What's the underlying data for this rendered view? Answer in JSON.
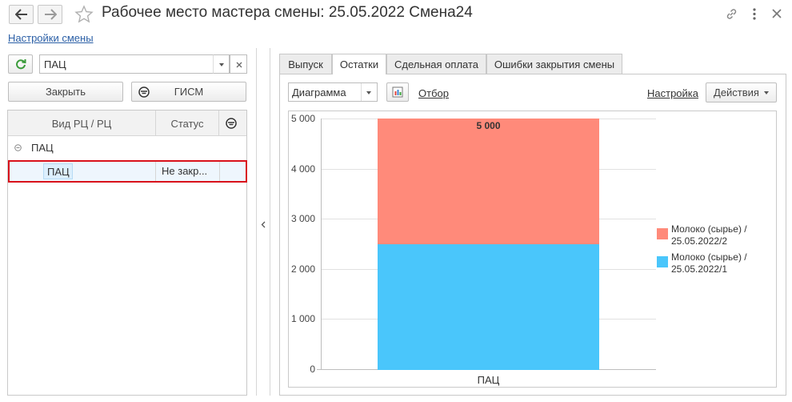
{
  "window": {
    "title": "Рабочее место мастера смены: 25.05.2022 Смена24",
    "settings_link": "Настройки смены",
    "icons": [
      "back-arrow-icon",
      "forward-arrow-icon",
      "star-icon",
      "link-icon",
      "more-vertical-icon",
      "close-icon"
    ]
  },
  "left_panel": {
    "search_value": "ПАЦ",
    "close_button": "Закрыть",
    "gism_button": "ГИСМ",
    "table": {
      "columns": [
        "Вид РЦ / РЦ",
        "Статус"
      ],
      "group": "ПАЦ",
      "rows": [
        {
          "name": "ПАЦ",
          "status": "Не закр..."
        }
      ]
    }
  },
  "tabs": [
    "Выпуск",
    "Остатки",
    "Сдельная оплата",
    "Ошибки закрытия смены"
  ],
  "active_tab": "Остатки",
  "toolbar": {
    "view_select": "Диаграмма",
    "filter_link": "Отбор",
    "settings_link": "Настройка",
    "actions_button": "Действия"
  },
  "colors": {
    "series_2": "#ff8a7a",
    "series_1": "#4ac6fb",
    "highlight": "#d9121b"
  },
  "chart_data": {
    "type": "bar",
    "stacked": true,
    "categories": [
      "ПАЦ"
    ],
    "series": [
      {
        "name": "Молоко (сырье) / 25.05.2022/1",
        "legend_line1": "Молоко (сырье) /",
        "legend_line2": "25.05.2022/1",
        "values": [
          2500
        ]
      },
      {
        "name": "Молоко (сырье) / 25.05.2022/2",
        "legend_line1": "Молоко (сырье) /",
        "legend_line2": "25.05.2022/2",
        "values": [
          2500
        ]
      }
    ],
    "total_label": "5 000",
    "ylim": [
      0,
      5000
    ],
    "yticks": [
      "0",
      "1 000",
      "2 000",
      "3 000",
      "4 000",
      "5 000"
    ],
    "grid": true,
    "legend_position": "right"
  }
}
